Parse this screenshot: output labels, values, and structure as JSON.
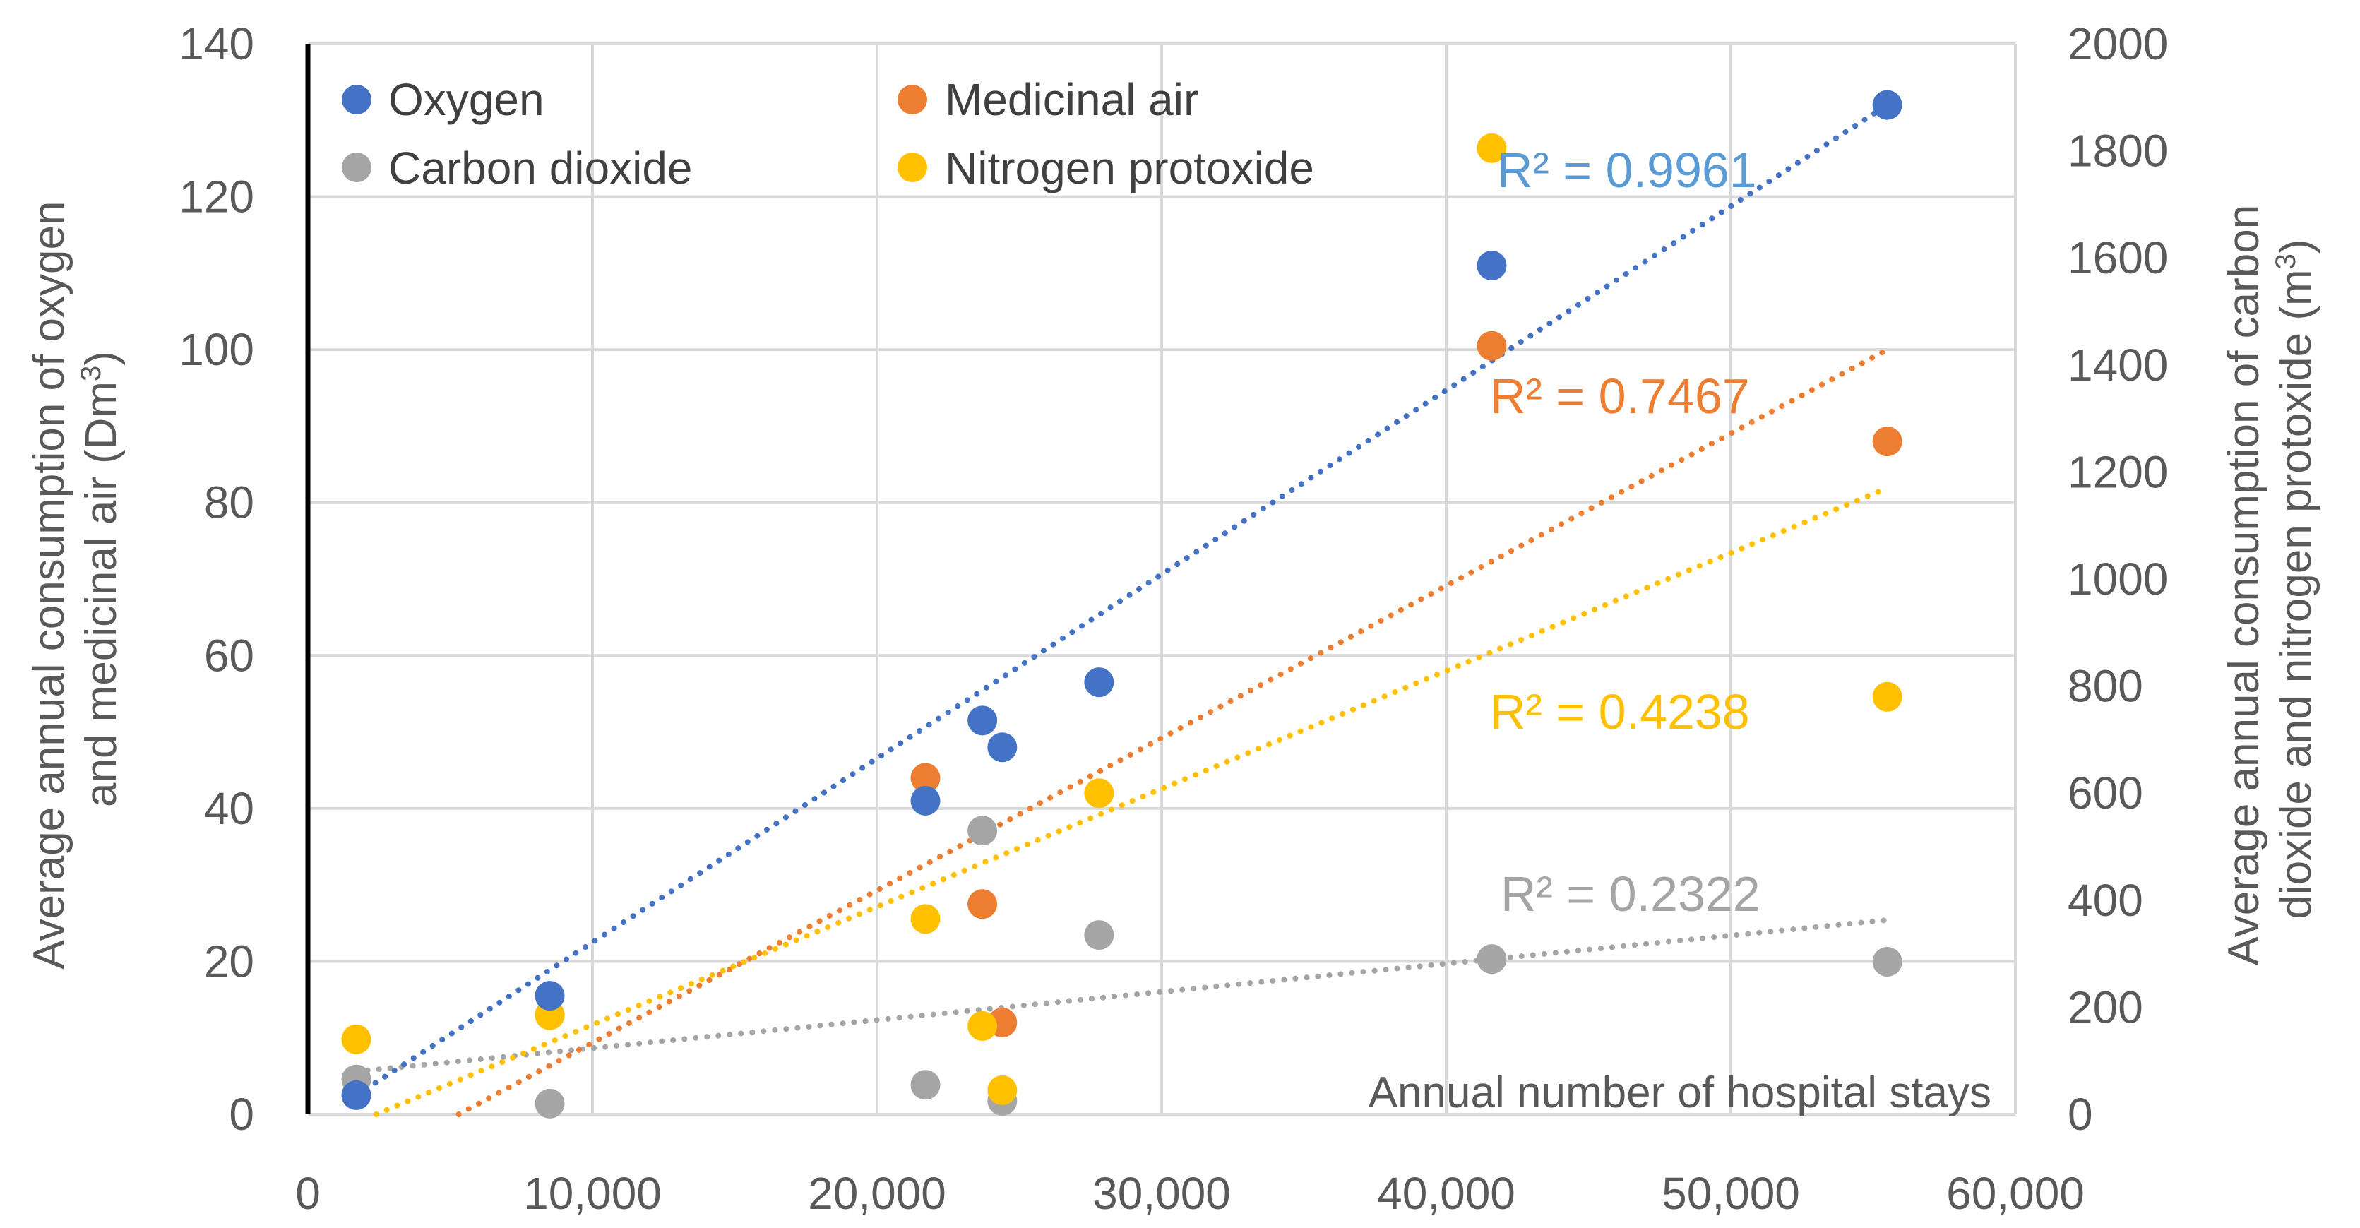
{
  "chart_data": {
    "type": "scatter",
    "title": "",
    "xlabel": "Annual number of hospital stays",
    "ylabel_left": "Average annual consumption of oxygen and medicinal air (Dm³)",
    "ylabel_right": "Average annual consumption of carbon dioxide and nitrogen protoxide (m³)",
    "ylabel_left_lines": [
      "Average annual consumption of oxygen",
      "and medicinal air (Dm",
      "3",
      ")"
    ],
    "ylabel_right_lines": [
      "Average annual consumption of carbon",
      "dioxide and nitrogen protoxide (m",
      "3",
      ")"
    ],
    "xlim": [
      0,
      60000
    ],
    "ylim_left": [
      0,
      140
    ],
    "ylim_right": [
      0,
      2000
    ],
    "x_ticks": [
      0,
      10000,
      20000,
      30000,
      40000,
      50000,
      60000
    ],
    "x_tick_labels": [
      "0",
      "10,000",
      "20,000",
      "30,000",
      "40,000",
      "50,000",
      "60,000"
    ],
    "y_left_ticks": [
      0,
      20,
      40,
      60,
      80,
      100,
      120,
      140
    ],
    "y_left_tick_labels": [
      "0",
      "20",
      "40",
      "60",
      "80",
      "100",
      "120",
      "140"
    ],
    "y_right_ticks": [
      0,
      200,
      400,
      600,
      800,
      1000,
      1200,
      1400,
      1600,
      1800,
      2000
    ],
    "y_right_tick_labels": [
      "0",
      "200",
      "400",
      "600",
      "800",
      "1000",
      "1200",
      "1400",
      "1600",
      "1800",
      "2000"
    ],
    "grid": true,
    "legend_position": "top-left",
    "series": [
      {
        "name": "Oxygen",
        "axis": "left",
        "color": "#4472C4",
        "r2_label": "R² = 0.9961",
        "r2_color": "#5B9BD5",
        "points": [
          [
            1700,
            2.5
          ],
          [
            8500,
            15.5
          ],
          [
            21700,
            41
          ],
          [
            23700,
            51.5
          ],
          [
            24400,
            48
          ],
          [
            27800,
            56.5
          ],
          [
            41600,
            111
          ],
          [
            55500,
            132
          ]
        ],
        "trend": [
          [
            1700,
            2.5
          ],
          [
            55500,
            132
          ]
        ]
      },
      {
        "name": "Medicinal air",
        "axis": "left",
        "color": "#ED7D31",
        "r2_label": "R² = 0.7467",
        "r2_color": "#ED7D31",
        "points": [
          [
            8500,
            13
          ],
          [
            21700,
            44
          ],
          [
            23700,
            27.5
          ],
          [
            24400,
            12
          ],
          [
            41600,
            100.5
          ],
          [
            55500,
            88
          ]
        ],
        "trend": [
          [
            5300,
            0
          ],
          [
            55500,
            100
          ]
        ]
      },
      {
        "name": "Carbon dioxide",
        "axis": "right",
        "color": "#A5A5A5",
        "r2_label": "R² = 0.2322",
        "r2_color": "#A5A5A5",
        "points": [
          [
            1700,
            65
          ],
          [
            8500,
            20
          ],
          [
            21700,
            55
          ],
          [
            23700,
            530
          ],
          [
            24400,
            25
          ],
          [
            27800,
            335
          ],
          [
            41600,
            290
          ],
          [
            55500,
            285
          ]
        ],
        "trend": [
          [
            1700,
            80
          ],
          [
            55500,
            363
          ]
        ]
      },
      {
        "name": "Nitrogen protoxide",
        "axis": "right",
        "color": "#FFC000",
        "r2_label": "R² = 0.4238",
        "r2_color": "#FFC000",
        "points": [
          [
            1700,
            140
          ],
          [
            8500,
            185
          ],
          [
            21700,
            365
          ],
          [
            23700,
            165
          ],
          [
            24400,
            45
          ],
          [
            27800,
            600
          ],
          [
            41600,
            1805
          ],
          [
            55500,
            780
          ]
        ],
        "trend": [
          [
            2400,
            0
          ],
          [
            55500,
            1170
          ]
        ]
      }
    ]
  }
}
